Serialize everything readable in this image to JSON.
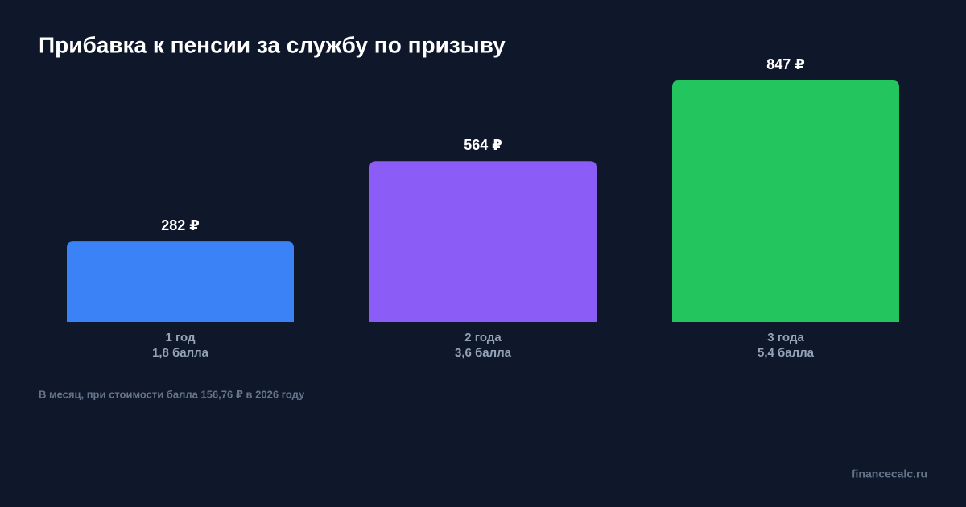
{
  "chart_data": {
    "type": "bar",
    "title": "Прибавка к пенсии за службу по призыву",
    "categories": [
      "1 год",
      "2 года",
      "3 года"
    ],
    "category_notes": [
      "1,8 балла",
      "3,6 балла",
      "5,4 балла"
    ],
    "values": [
      282,
      564,
      847
    ],
    "value_labels": [
      "282 ₽",
      "564 ₽",
      "847 ₽"
    ],
    "colors": [
      "#3b82f6",
      "#8b5cf6",
      "#22c55e"
    ],
    "footnote": "В месяц, при стоимости балла 156,76 ₽ в 2026 году",
    "source": "financecalc.ru"
  }
}
